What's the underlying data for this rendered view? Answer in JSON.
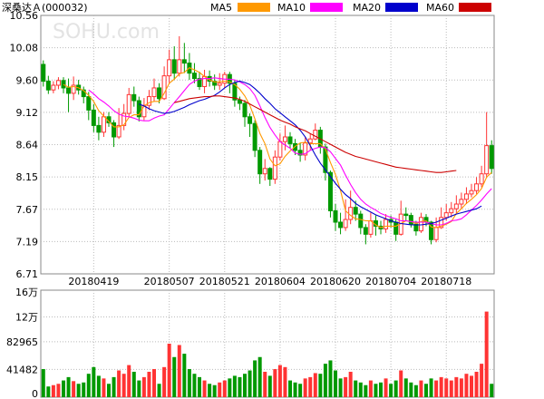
{
  "title": "深桑达Ａ(000032)",
  "watermark": "SOHU.com",
  "legend": [
    {
      "name": "MA5",
      "color": "#ff9900"
    },
    {
      "name": "MA10",
      "color": "#ff00ff"
    },
    {
      "name": "MA20",
      "color": "#0000cc"
    },
    {
      "name": "MA60",
      "color": "#cc0000"
    }
  ],
  "colors": {
    "up": "#ff3333",
    "down": "#009900",
    "grid": "#bbbbbb",
    "frame": "#888888",
    "background": "#ffffff"
  },
  "chart_data": [
    {
      "type": "candlestick",
      "title": "",
      "ylim": [
        6.71,
        10.56
      ],
      "y_ticks": [
        "10.56",
        "10.08",
        "9.60",
        "9.12",
        "8.64",
        "8.15",
        "7.67",
        "7.19",
        "6.71"
      ],
      "x_tick_labels": [
        "20180419",
        "20180507",
        "20180521",
        "20180604",
        "20180620",
        "20180704",
        "20180718"
      ],
      "x_tick_indices": [
        10,
        25,
        36,
        47,
        58,
        69,
        80
      ],
      "grid": true,
      "candles": [
        [
          9.83,
          9.58,
          9.89,
          9.5
        ],
        [
          9.58,
          9.45,
          9.66,
          9.39
        ],
        [
          9.45,
          9.52,
          9.58,
          9.4
        ],
        [
          9.52,
          9.59,
          9.64,
          9.46
        ],
        [
          9.59,
          9.48,
          9.64,
          9.4
        ],
        [
          9.48,
          9.4,
          9.62,
          9.12
        ],
        [
          9.4,
          9.52,
          9.65,
          9.3
        ],
        [
          9.52,
          9.45,
          9.6,
          9.38
        ],
        [
          9.45,
          9.35,
          9.5,
          9.25
        ],
        [
          9.35,
          9.15,
          9.42,
          9.0
        ],
        [
          9.15,
          8.92,
          9.24,
          8.82
        ],
        [
          8.92,
          8.82,
          9.05,
          8.7
        ],
        [
          8.82,
          9.05,
          9.12,
          8.75
        ],
        [
          9.05,
          8.96,
          9.12,
          8.9
        ],
        [
          8.96,
          8.75,
          9.0,
          8.6
        ],
        [
          8.75,
          8.92,
          9.18,
          8.72
        ],
        [
          8.92,
          9.1,
          9.24,
          8.85
        ],
        [
          9.1,
          9.38,
          9.48,
          9.05
        ],
        [
          9.38,
          9.29,
          9.5,
          9.2
        ],
        [
          9.29,
          9.05,
          9.35,
          8.98
        ],
        [
          9.05,
          9.22,
          9.33,
          9.0
        ],
        [
          9.22,
          9.35,
          9.45,
          9.15
        ],
        [
          9.35,
          9.48,
          9.62,
          9.28
        ],
        [
          9.48,
          9.32,
          9.55,
          9.25
        ],
        [
          9.32,
          9.66,
          9.8,
          9.3
        ],
        [
          9.66,
          9.9,
          10.05,
          9.55
        ],
        [
          9.9,
          9.7,
          10.1,
          9.6
        ],
        [
          9.7,
          9.9,
          10.25,
          9.65
        ],
        [
          9.9,
          9.85,
          10.15,
          9.7
        ],
        [
          9.85,
          9.7,
          10.0,
          9.6
        ],
        [
          9.7,
          9.62,
          9.85,
          9.55
        ],
        [
          9.62,
          9.5,
          9.72,
          9.45
        ],
        [
          9.5,
          9.65,
          9.75,
          9.4
        ],
        [
          9.65,
          9.58,
          9.74,
          9.5
        ],
        [
          9.58,
          9.52,
          9.68,
          9.45
        ],
        [
          9.52,
          9.55,
          9.7,
          9.45
        ],
        [
          9.55,
          9.68,
          9.72,
          9.48
        ],
        [
          9.68,
          9.55,
          9.72,
          9.4
        ],
        [
          9.55,
          9.3,
          9.6,
          9.2
        ],
        [
          9.3,
          9.25,
          9.35,
          9.15
        ],
        [
          9.25,
          9.05,
          9.3,
          8.9
        ],
        [
          9.05,
          8.95,
          9.1,
          8.75
        ],
        [
          8.95,
          8.55,
          9.0,
          8.45
        ],
        [
          8.55,
          8.2,
          8.6,
          8.05
        ],
        [
          8.2,
          8.28,
          8.42,
          8.1
        ],
        [
          8.28,
          8.12,
          8.3,
          8.02
        ],
        [
          8.12,
          8.45,
          8.55,
          8.05
        ],
        [
          8.45,
          8.68,
          8.8,
          8.4
        ],
        [
          8.68,
          8.75,
          8.92,
          8.55
        ],
        [
          8.75,
          8.65,
          8.82,
          8.58
        ],
        [
          8.65,
          8.55,
          8.72,
          8.48
        ],
        [
          8.55,
          8.48,
          8.66,
          8.38
        ],
        [
          8.48,
          8.66,
          8.75,
          8.4
        ],
        [
          8.66,
          8.72,
          8.8,
          8.55
        ],
        [
          8.72,
          8.85,
          8.95,
          8.7
        ],
        [
          8.85,
          8.6,
          8.9,
          8.5
        ],
        [
          8.6,
          8.22,
          8.65,
          8.1
        ],
        [
          8.22,
          7.65,
          8.25,
          7.55
        ],
        [
          7.65,
          7.48,
          7.75,
          7.35
        ],
        [
          7.48,
          7.4,
          7.62,
          7.3
        ],
        [
          7.4,
          7.52,
          7.82,
          7.35
        ],
        [
          7.52,
          7.7,
          7.95,
          7.45
        ],
        [
          7.7,
          7.6,
          7.8,
          7.5
        ],
        [
          7.6,
          7.4,
          7.65,
          7.3
        ],
        [
          7.4,
          7.3,
          7.45,
          7.15
        ],
        [
          7.3,
          7.5,
          7.62,
          7.25
        ],
        [
          7.5,
          7.42,
          7.58,
          7.28
        ],
        [
          7.42,
          7.38,
          7.5,
          7.3
        ],
        [
          7.38,
          7.52,
          7.6,
          7.32
        ],
        [
          7.52,
          7.48,
          7.58,
          7.4
        ],
        [
          7.48,
          7.3,
          7.52,
          7.2
        ],
        [
          7.3,
          7.6,
          7.8,
          7.28
        ],
        [
          7.6,
          7.58,
          7.7,
          7.5
        ],
        [
          7.58,
          7.45,
          7.62,
          7.4
        ],
        [
          7.45,
          7.35,
          7.5,
          7.28
        ],
        [
          7.35,
          7.55,
          7.62,
          7.32
        ],
        [
          7.55,
          7.48,
          7.6,
          7.42
        ],
        [
          7.48,
          7.22,
          7.5,
          7.15
        ],
        [
          7.22,
          7.4,
          7.55,
          7.18
        ],
        [
          7.4,
          7.55,
          7.7,
          7.38
        ],
        [
          7.55,
          7.62,
          7.75,
          7.5
        ],
        [
          7.62,
          7.68,
          7.78,
          7.55
        ],
        [
          7.68,
          7.75,
          7.88,
          7.6
        ],
        [
          7.75,
          7.82,
          7.92,
          7.68
        ],
        [
          7.82,
          7.9,
          8.0,
          7.75
        ],
        [
          7.9,
          7.95,
          8.05,
          7.85
        ],
        [
          7.95,
          8.05,
          8.15,
          7.9
        ],
        [
          8.05,
          8.2,
          8.32,
          8.0
        ],
        [
          8.2,
          8.62,
          9.12,
          8.15
        ],
        [
          8.62,
          8.28,
          8.7,
          8.2
        ]
      ],
      "ma5": [
        null,
        null,
        null,
        null,
        9.53,
        9.49,
        9.5,
        9.48,
        9.44,
        9.37,
        9.28,
        9.14,
        9.06,
        8.98,
        8.9,
        8.9,
        8.93,
        9.04,
        9.08,
        9.08,
        9.21,
        9.26,
        9.28,
        9.28,
        9.4,
        9.55,
        9.61,
        9.69,
        9.71,
        9.78,
        9.75,
        9.71,
        9.65,
        9.6,
        9.57,
        9.57,
        9.58,
        9.57,
        9.53,
        9.46,
        9.36,
        9.22,
        9.02,
        8.8,
        8.65,
        8.42,
        8.32,
        8.35,
        8.46,
        8.54,
        8.61,
        8.66,
        8.67,
        8.65,
        8.65,
        8.65,
        8.57,
        8.37,
        8.19,
        7.95,
        7.65,
        7.58,
        7.53,
        7.52,
        7.5,
        7.5,
        7.44,
        7.4,
        7.42,
        7.42,
        7.42,
        7.46,
        7.5,
        7.49,
        7.46,
        7.49,
        7.5,
        7.41,
        7.4,
        7.42,
        7.45,
        7.49,
        7.61,
        7.68,
        7.76,
        7.82,
        7.89,
        7.98,
        8.15,
        8.22
      ],
      "ma10": [
        null,
        null,
        null,
        null,
        null,
        null,
        null,
        null,
        null,
        9.45,
        9.39,
        9.32,
        9.27,
        9.21,
        9.14,
        9.09,
        9.06,
        9.05,
        9.03,
        9.0,
        8.99,
        8.99,
        9.03,
        9.06,
        9.08,
        9.17,
        9.26,
        9.35,
        9.44,
        9.53,
        9.58,
        9.61,
        9.62,
        9.62,
        9.63,
        9.62,
        9.61,
        9.61,
        9.6,
        9.57,
        9.53,
        9.47,
        9.37,
        9.21,
        9.04,
        8.89,
        8.78,
        8.68,
        8.63,
        8.58,
        8.51,
        8.49,
        8.5,
        8.55,
        8.58,
        8.6,
        8.59,
        8.53,
        8.43,
        8.33,
        8.18,
        8.04,
        7.92,
        7.82,
        7.75,
        7.7,
        7.66,
        7.61,
        7.58,
        7.55,
        7.53,
        7.5,
        7.5,
        7.49,
        7.48,
        7.48,
        7.48,
        7.46,
        7.44,
        7.44,
        7.46,
        7.5,
        7.51,
        7.53,
        7.59,
        7.66,
        7.73,
        7.81,
        7.9,
        7.98
      ],
      "ma20": [
        null,
        null,
        null,
        null,
        null,
        null,
        null,
        null,
        null,
        null,
        null,
        null,
        null,
        null,
        null,
        null,
        null,
        null,
        null,
        9.24,
        9.21,
        9.17,
        9.14,
        9.12,
        9.1,
        9.11,
        9.13,
        9.16,
        9.19,
        9.23,
        9.26,
        9.29,
        9.31,
        9.34,
        9.37,
        9.42,
        9.48,
        9.53,
        9.56,
        9.58,
        9.56,
        9.53,
        9.47,
        9.4,
        9.32,
        9.25,
        9.17,
        9.11,
        9.05,
        8.99,
        8.93,
        8.85,
        8.75,
        8.62,
        8.48,
        8.36,
        8.26,
        8.16,
        8.06,
        7.97,
        7.89,
        7.83,
        7.76,
        7.71,
        7.67,
        7.63,
        7.59,
        7.56,
        7.53,
        7.5,
        7.48,
        7.46,
        7.45,
        7.44,
        7.44,
        7.44,
        7.45,
        7.46,
        7.48,
        7.51,
        7.54,
        7.57,
        7.6,
        7.62,
        7.64,
        7.66,
        7.68,
        7.72
      ],
      "ma60": [
        null,
        null,
        null,
        null,
        null,
        null,
        null,
        null,
        null,
        null,
        null,
        null,
        null,
        null,
        null,
        null,
        null,
        null,
        null,
        null,
        null,
        null,
        null,
        null,
        null,
        null,
        9.26,
        9.28,
        9.3,
        9.32,
        9.33,
        9.34,
        9.35,
        9.35,
        9.36,
        9.36,
        9.35,
        9.34,
        9.33,
        9.31,
        9.28,
        9.24,
        9.2,
        9.16,
        9.12,
        9.08,
        9.04,
        9.0,
        8.97,
        8.94,
        8.9,
        8.87,
        8.84,
        8.8,
        8.76,
        8.72,
        8.68,
        8.64,
        8.6,
        8.56,
        8.52,
        8.49,
        8.46,
        8.44,
        8.42,
        8.4,
        8.38,
        8.36,
        8.34,
        8.32,
        8.3,
        8.29,
        8.28,
        8.27,
        8.26,
        8.25,
        8.24,
        8.23,
        8.22,
        8.22,
        8.23,
        8.24,
        8.25
      ]
    },
    {
      "type": "bar",
      "title": "",
      "ylim": [
        0,
        160000
      ],
      "y_ticks": [
        "16万",
        "12万",
        "82965",
        "41482",
        "0"
      ],
      "y_tick_values": [
        160000,
        120000,
        82965,
        41482,
        0
      ],
      "grid": true,
      "volumes": [
        42000,
        16000,
        18000,
        20000,
        25000,
        30000,
        24000,
        20000,
        22000,
        35000,
        45000,
        32000,
        28000,
        20000,
        30000,
        40000,
        35000,
        48000,
        38000,
        25000,
        30000,
        38000,
        42000,
        20000,
        45000,
        80000,
        60000,
        78000,
        65000,
        42000,
        35000,
        30000,
        25000,
        20000,
        18000,
        22000,
        25000,
        28000,
        32000,
        30000,
        35000,
        40000,
        55000,
        60000,
        38000,
        32000,
        42000,
        48000,
        45000,
        25000,
        22000,
        20000,
        28000,
        30000,
        36000,
        35000,
        50000,
        55000,
        40000,
        28000,
        30000,
        38000,
        25000,
        22000,
        18000,
        25000,
        20000,
        22000,
        28000,
        20000,
        25000,
        40000,
        28000,
        22000,
        18000,
        25000,
        20000,
        28000,
        25000,
        30000,
        28000,
        25000,
        30000,
        28000,
        35000,
        32000,
        38000,
        50000,
        128000,
        20000
      ]
    }
  ]
}
